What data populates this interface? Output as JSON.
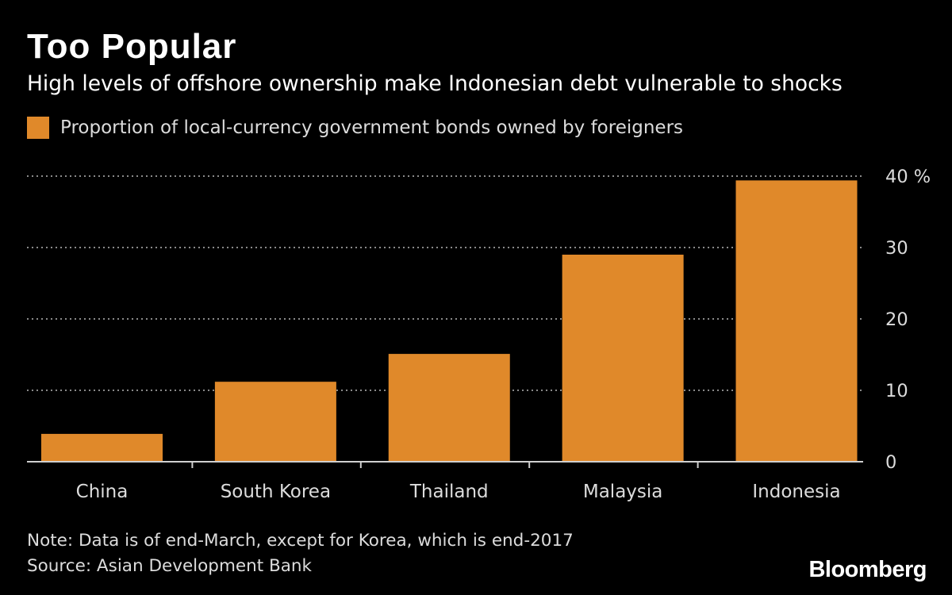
{
  "colors": {
    "background": "#000000",
    "bar": "#e0892a",
    "grid": "#8a8a8a",
    "text": "#dcdcdc"
  },
  "header": {
    "title": "Too Popular",
    "subtitle": "High levels of offshore ownership make Indonesian debt vulnerable to shocks"
  },
  "legend": {
    "label": "Proportion of local-currency government bonds owned by foreigners"
  },
  "footer": {
    "note": "Note: Data is of end-March, except for Korea, which is end-2017",
    "source": "Source: Asian Development Bank",
    "brand": "Bloomberg"
  },
  "chart_data": {
    "type": "bar",
    "categories": [
      "China",
      "South Korea",
      "Thailand",
      "Malaysia",
      "Indonesia"
    ],
    "series": [
      {
        "name": "Proportion of local-currency government bonds owned by foreigners",
        "values": [
          3.9,
          11.2,
          15.1,
          29.0,
          39.4
        ]
      }
    ],
    "ylim": [
      0,
      40
    ],
    "yticks": [
      0,
      10,
      20,
      30,
      40
    ],
    "ytick_labels": [
      "0",
      "10",
      "20",
      "30",
      "40 %"
    ],
    "grid": true,
    "legend_position": "top-left",
    "y_axis_side": "right"
  }
}
